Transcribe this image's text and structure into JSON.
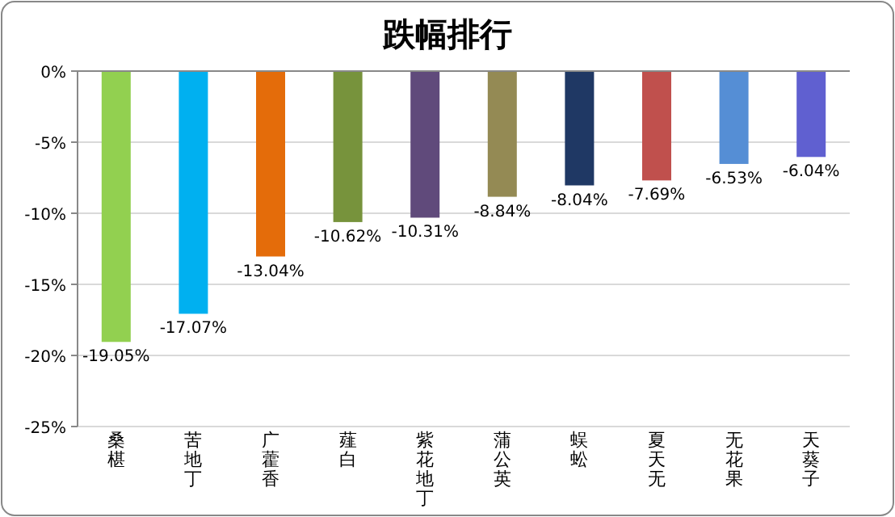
{
  "chart_data": {
    "type": "bar",
    "title": "跌幅排行",
    "categories": [
      "桑椹",
      "苦地丁",
      "广藿香",
      "薤白",
      "紫花地丁",
      "蒲公英",
      "蜈蚣",
      "夏天无",
      "无花果",
      "天葵子"
    ],
    "values": [
      -19.05,
      -17.07,
      -13.04,
      -10.62,
      -10.31,
      -8.84,
      -8.04,
      -7.69,
      -6.53,
      -6.04
    ],
    "value_labels": [
      "-19.05%",
      "-17.07%",
      "-13.04%",
      "-10.62%",
      "-10.31%",
      "-8.84%",
      "-8.04%",
      "-7.69%",
      "-6.53%",
      "-6.04%"
    ],
    "colors": [
      "#92d050",
      "#00b0f0",
      "#e46c0a",
      "#77933c",
      "#604a7b",
      "#948a54",
      "#1f3864",
      "#c0504d",
      "#558ed5",
      "#6060d0"
    ],
    "ylim": [
      -25,
      0
    ],
    "yticks": [
      {
        "value": 0,
        "label": "0%"
      },
      {
        "value": -5,
        "label": "-5%"
      },
      {
        "value": -10,
        "label": "-10%"
      },
      {
        "value": -15,
        "label": "-15%"
      },
      {
        "value": -20,
        "label": "-20%"
      },
      {
        "value": -25,
        "label": "-25%"
      }
    ],
    "grid": true
  }
}
